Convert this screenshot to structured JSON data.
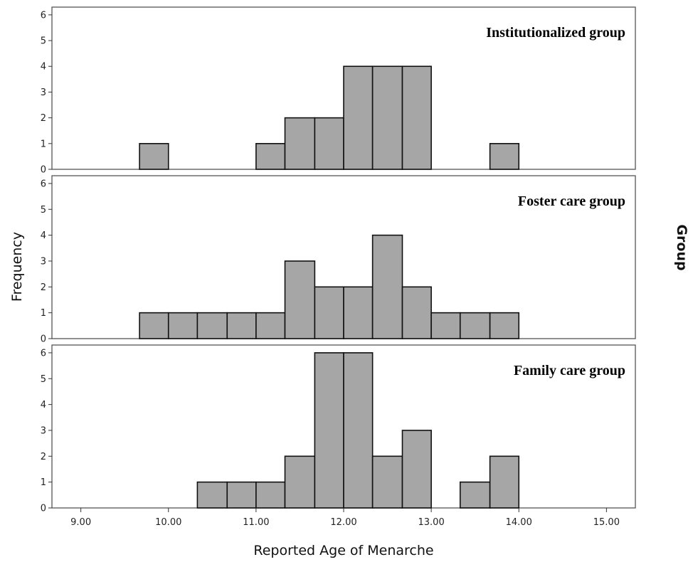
{
  "chart_data": {
    "type": "bar",
    "subtype": "faceted-histogram",
    "xlabel": "Reported Age of Menarche",
    "ylabel": "Frequency",
    "side_label": "Group",
    "xlim": [
      8.67,
      15.33
    ],
    "ylim": [
      0,
      6.3
    ],
    "x_ticks": [
      "9.00",
      "10.00",
      "11.00",
      "12.00",
      "13.00",
      "14.00",
      "15.00"
    ],
    "y_ticks": [
      "0",
      "1",
      "2",
      "3",
      "4",
      "5",
      "6"
    ],
    "bar_color": "#a6a6a6",
    "bin_width": 0.3333,
    "panels": [
      {
        "name": "Institutionalized group",
        "bins": [
          {
            "start": 9.67,
            "end": 10.0,
            "count": 1
          },
          {
            "start": 11.0,
            "end": 11.33,
            "count": 1
          },
          {
            "start": 11.33,
            "end": 11.67,
            "count": 2
          },
          {
            "start": 11.67,
            "end": 12.0,
            "count": 2
          },
          {
            "start": 12.0,
            "end": 12.33,
            "count": 4
          },
          {
            "start": 12.33,
            "end": 12.67,
            "count": 4
          },
          {
            "start": 12.67,
            "end": 13.0,
            "count": 4
          },
          {
            "start": 13.67,
            "end": 14.0,
            "count": 1
          }
        ]
      },
      {
        "name": "Foster care group",
        "bins": [
          {
            "start": 9.67,
            "end": 10.0,
            "count": 1
          },
          {
            "start": 10.0,
            "end": 10.33,
            "count": 1
          },
          {
            "start": 10.33,
            "end": 10.67,
            "count": 1
          },
          {
            "start": 10.67,
            "end": 11.0,
            "count": 1
          },
          {
            "start": 11.0,
            "end": 11.33,
            "count": 1
          },
          {
            "start": 11.33,
            "end": 11.67,
            "count": 3
          },
          {
            "start": 11.67,
            "end": 12.0,
            "count": 2
          },
          {
            "start": 12.0,
            "end": 12.33,
            "count": 2
          },
          {
            "start": 12.33,
            "end": 12.67,
            "count": 4
          },
          {
            "start": 12.67,
            "end": 13.0,
            "count": 2
          },
          {
            "start": 13.0,
            "end": 13.33,
            "count": 1
          },
          {
            "start": 13.33,
            "end": 13.67,
            "count": 1
          },
          {
            "start": 13.67,
            "end": 14.0,
            "count": 1
          }
        ]
      },
      {
        "name": "Family care group",
        "bins": [
          {
            "start": 10.33,
            "end": 10.67,
            "count": 1
          },
          {
            "start": 10.67,
            "end": 11.0,
            "count": 1
          },
          {
            "start": 11.0,
            "end": 11.33,
            "count": 1
          },
          {
            "start": 11.33,
            "end": 11.67,
            "count": 2
          },
          {
            "start": 11.67,
            "end": 12.0,
            "count": 6
          },
          {
            "start": 12.0,
            "end": 12.33,
            "count": 6
          },
          {
            "start": 12.33,
            "end": 12.67,
            "count": 2
          },
          {
            "start": 12.67,
            "end": 13.0,
            "count": 3
          },
          {
            "start": 13.33,
            "end": 13.67,
            "count": 1
          },
          {
            "start": 13.67,
            "end": 14.0,
            "count": 2
          }
        ]
      }
    ]
  }
}
